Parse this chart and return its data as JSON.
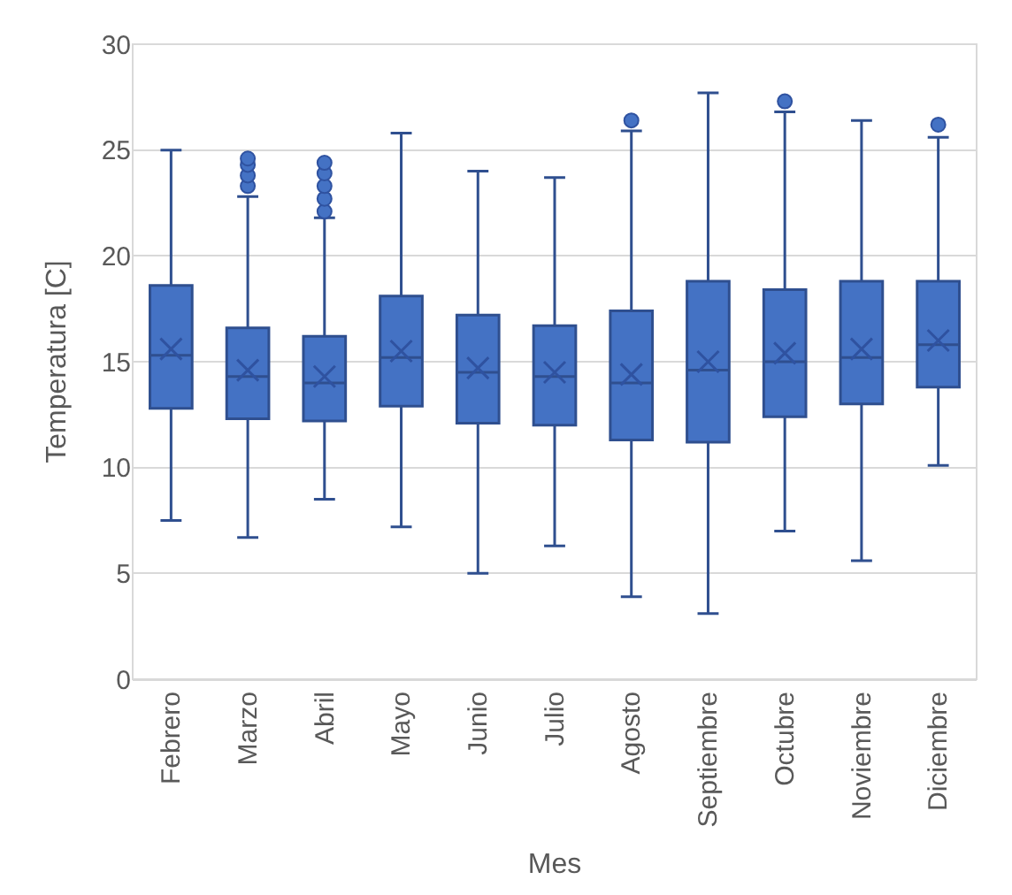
{
  "chart_data": {
    "type": "box",
    "xlabel": "Mes",
    "ylabel": "Temperatura [C]",
    "categories": [
      "Febrero",
      "Marzo",
      "Abril",
      "Mayo",
      "Junio",
      "Julio",
      "Agosto",
      "Septiembre",
      "Octubre",
      "Noviembre",
      "Diciembre"
    ],
    "color": "#4472c4",
    "ylim": [
      0,
      30
    ],
    "yticks": [
      0,
      5,
      10,
      15,
      20,
      25,
      30
    ],
    "grid": "y",
    "boxes": [
      {
        "low": 7.5,
        "q1": 12.8,
        "median": 15.3,
        "q3": 18.6,
        "high": 25,
        "mean": 15.6
      },
      {
        "low": 6.7,
        "q1": 12.3,
        "median": 14.3,
        "q3": 16.6,
        "high": 22.8,
        "mean": 14.6,
        "outliers": [
          23.3,
          23.8,
          24.3,
          24.6
        ]
      },
      {
        "low": 8.5,
        "q1": 12.2,
        "median": 14,
        "q3": 16.2,
        "high": 21.8,
        "mean": 14.3,
        "outliers": [
          22.1,
          22.7,
          23.3,
          23.9,
          24.4
        ]
      },
      {
        "low": 7.2,
        "q1": 12.9,
        "median": 15.2,
        "q3": 18.1,
        "high": 25.8,
        "mean": 15.5
      },
      {
        "low": 5,
        "q1": 12.1,
        "median": 14.5,
        "q3": 17.2,
        "high": 24,
        "mean": 14.7
      },
      {
        "low": 6.3,
        "q1": 12,
        "median": 14.3,
        "q3": 16.7,
        "high": 23.7,
        "mean": 14.5
      },
      {
        "low": 3.9,
        "q1": 11.3,
        "median": 14,
        "q3": 17.4,
        "high": 25.9,
        "mean": 14.4,
        "outliers": [
          26.4
        ]
      },
      {
        "low": 3.1,
        "q1": 11.2,
        "median": 14.6,
        "q3": 18.8,
        "high": 27.7,
        "mean": 15
      },
      {
        "low": 7,
        "q1": 12.4,
        "median": 15,
        "q3": 18.4,
        "high": 26.8,
        "mean": 15.4,
        "outliers": [
          27.3
        ]
      },
      {
        "low": 5.6,
        "q1": 13,
        "median": 15.2,
        "q3": 18.8,
        "high": 26.4,
        "mean": 15.6
      },
      {
        "low": 10.1,
        "q1": 13.8,
        "median": 15.8,
        "q3": 18.8,
        "high": 25.6,
        "mean": 16,
        "outliers": [
          26.2
        ]
      }
    ]
  }
}
